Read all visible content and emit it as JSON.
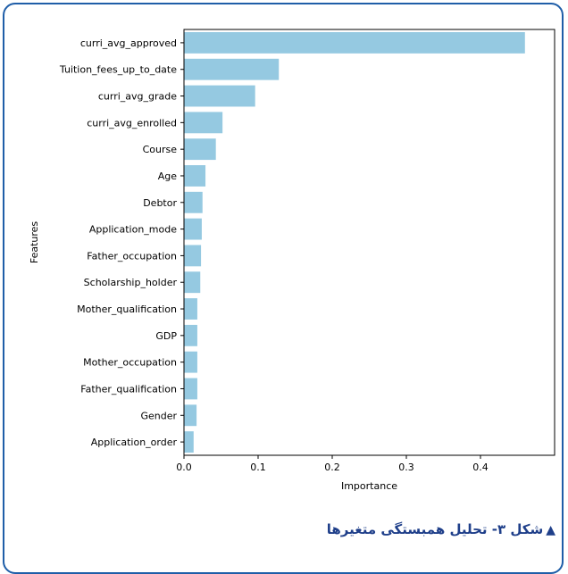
{
  "chart_data": {
    "type": "bar",
    "orientation": "horizontal",
    "categories": [
      "curri_avg_approved",
      "Tuition_fees_up_to_date",
      "curri_avg_grade",
      "curri_avg_enrolled",
      "Course",
      "Age",
      "Debtor",
      "Application_mode",
      "Father_occupation",
      "Scholarship_holder",
      "Mother_qualification",
      "GDP",
      "Mother_occupation",
      "Father_qualification",
      "Gender",
      "Application_order"
    ],
    "values": [
      0.46,
      0.128,
      0.096,
      0.052,
      0.043,
      0.029,
      0.025,
      0.024,
      0.023,
      0.022,
      0.018,
      0.018,
      0.018,
      0.018,
      0.017,
      0.013
    ],
    "xlabel": "Importance",
    "ylabel": "Features",
    "xlim": [
      0,
      0.5
    ],
    "xticks": [
      0.0,
      0.1,
      0.2,
      0.3,
      0.4
    ],
    "xtick_labels": [
      "0.0",
      "0.1",
      "0.2",
      "0.3",
      "0.4"
    ],
    "grid": false,
    "bar_color": "#95c9e1"
  },
  "caption": {
    "marker": "▲",
    "text": "شکل ۳- تحلیل همبستگی متغیرها"
  },
  "colors": {
    "frame": "#1f5ea8",
    "caption": "#1f3f8a"
  }
}
